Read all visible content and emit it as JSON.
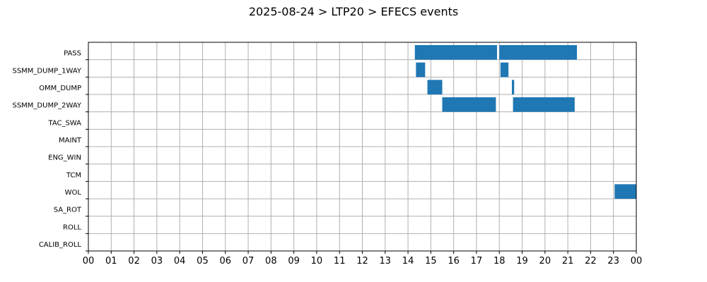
{
  "chart_data": {
    "type": "timeline",
    "title": "2025-08-24 > LTP20 > EFECS events",
    "x_tick_labels": [
      "00",
      "01",
      "02",
      "03",
      "04",
      "05",
      "06",
      "07",
      "08",
      "09",
      "10",
      "11",
      "12",
      "13",
      "14",
      "15",
      "16",
      "17",
      "18",
      "19",
      "20",
      "21",
      "22",
      "23",
      "00"
    ],
    "x_range_hours": [
      0,
      24
    ],
    "grid": true,
    "bar_color": "#1f77b4",
    "categories": [
      "PASS",
      "SSMM_DUMP_1WAY",
      "OMM_DUMP",
      "SSMM_DUMP_2WAY",
      "TAC_SWA",
      "MAINT",
      "ENG_WIN",
      "TCM",
      "WOL",
      "SA_ROT",
      "ROLL",
      "CALIB_ROLL"
    ],
    "events": [
      {
        "category": "PASS",
        "start": 14.3,
        "end": 17.9
      },
      {
        "category": "PASS",
        "start": 18.0,
        "end": 21.4
      },
      {
        "category": "SSMM_DUMP_1WAY",
        "start": 14.35,
        "end": 14.75
      },
      {
        "category": "SSMM_DUMP_1WAY",
        "start": 18.05,
        "end": 18.4
      },
      {
        "category": "OMM_DUMP",
        "start": 14.85,
        "end": 15.5
      },
      {
        "category": "OMM_DUMP",
        "start": 18.55,
        "end": 18.65
      },
      {
        "category": "SSMM_DUMP_2WAY",
        "start": 15.5,
        "end": 17.85
      },
      {
        "category": "SSMM_DUMP_2WAY",
        "start": 18.6,
        "end": 21.3
      },
      {
        "category": "WOL",
        "start": 23.05,
        "end": 24.0
      }
    ]
  }
}
